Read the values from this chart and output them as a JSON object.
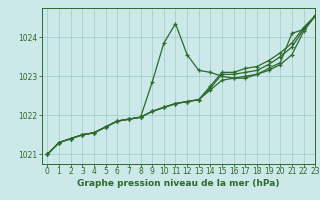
{
  "bg_color": "#cce8e8",
  "grid_color": "#99cccc",
  "line_color": "#2d6a2d",
  "xlabel": "Graphe pression niveau de la mer (hPa)",
  "ylim": [
    1020.75,
    1024.75
  ],
  "xlim": [
    -0.5,
    23
  ],
  "yticks": [
    1021,
    1022,
    1023,
    1024
  ],
  "xtick_labels": [
    "0",
    "1",
    "2",
    "3",
    "4",
    "5",
    "6",
    "7",
    "8",
    "9",
    "10",
    "11",
    "12",
    "13",
    "14",
    "15",
    "16",
    "17",
    "18",
    "19",
    "20",
    "21",
    "22",
    "23"
  ],
  "xticks": [
    0,
    1,
    2,
    3,
    4,
    5,
    6,
    7,
    8,
    9,
    10,
    11,
    12,
    13,
    14,
    15,
    16,
    17,
    18,
    19,
    20,
    21,
    22,
    23
  ],
  "series": [
    [
      1021.0,
      1021.3,
      1021.4,
      1021.5,
      1021.55,
      1021.7,
      1021.85,
      1021.9,
      1021.95,
      1022.85,
      1023.85,
      1024.35,
      1023.55,
      1023.15,
      1023.1,
      1023.0,
      1022.95,
      1022.95,
      1023.05,
      1023.2,
      1023.35,
      1024.1,
      1024.2,
      1024.55
    ],
    [
      1021.0,
      1021.3,
      1021.4,
      1021.5,
      1021.55,
      1021.7,
      1021.85,
      1021.9,
      1021.95,
      1022.1,
      1022.2,
      1022.3,
      1022.35,
      1022.4,
      1022.65,
      1022.9,
      1022.95,
      1023.0,
      1023.05,
      1023.15,
      1023.3,
      1023.55,
      1024.15,
      1024.55
    ],
    [
      1021.0,
      1021.3,
      1021.4,
      1021.5,
      1021.55,
      1021.7,
      1021.85,
      1021.9,
      1021.95,
      1022.1,
      1022.2,
      1022.3,
      1022.35,
      1022.4,
      1022.7,
      1023.05,
      1023.05,
      1023.1,
      1023.15,
      1023.3,
      1023.5,
      1023.75,
      1024.2,
      1024.55
    ],
    [
      1021.0,
      1021.3,
      1021.4,
      1021.5,
      1021.55,
      1021.7,
      1021.85,
      1021.9,
      1021.95,
      1022.1,
      1022.2,
      1022.3,
      1022.35,
      1022.4,
      1022.75,
      1023.1,
      1023.1,
      1023.2,
      1023.25,
      1023.4,
      1023.6,
      1023.85,
      1024.25,
      1024.55
    ]
  ],
  "tick_fontsize": 5.5,
  "xlabel_fontsize": 6.5,
  "linewidth": 0.9,
  "markersize": 3.5,
  "markeredgewidth": 0.9
}
